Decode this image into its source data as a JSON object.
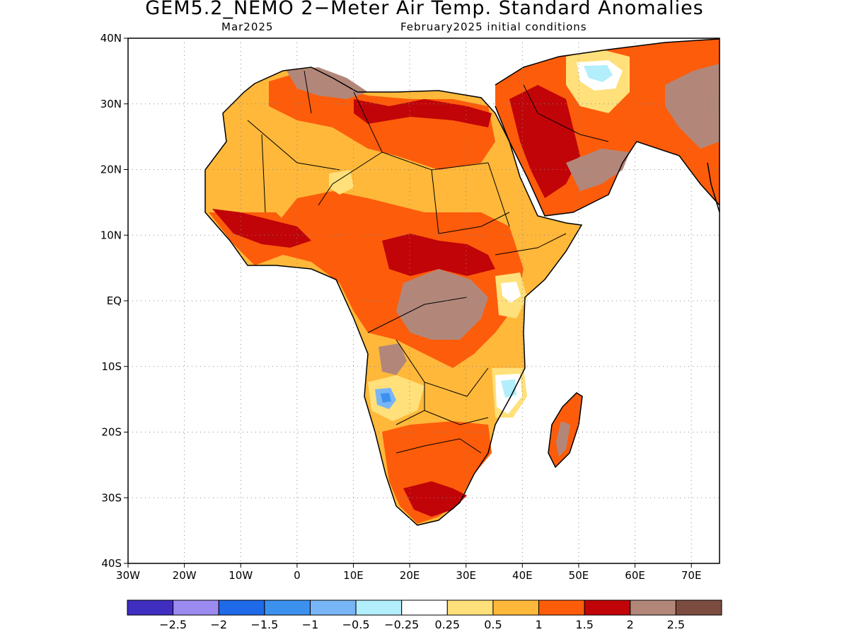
{
  "title": "GEM5.2_NEMO 2−Meter Air Temp. Standard Anomalies",
  "subtitle_left": "Mar2025",
  "subtitle_right": "February2025 initial conditions",
  "map": {
    "lon_range": [
      -30,
      75
    ],
    "lat_range": [
      -40,
      40
    ],
    "lon_ticks": [
      {
        "value": -30,
        "label": "30W"
      },
      {
        "value": -20,
        "label": "20W"
      },
      {
        "value": -10,
        "label": "10W"
      },
      {
        "value": 0,
        "label": "0"
      },
      {
        "value": 10,
        "label": "10E"
      },
      {
        "value": 20,
        "label": "20E"
      },
      {
        "value": 30,
        "label": "30E"
      },
      {
        "value": 40,
        "label": "40E"
      },
      {
        "value": 50,
        "label": "50E"
      },
      {
        "value": 60,
        "label": "60E"
      },
      {
        "value": 70,
        "label": "70E"
      }
    ],
    "lat_ticks": [
      {
        "value": 40,
        "label": "40N"
      },
      {
        "value": 30,
        "label": "30N"
      },
      {
        "value": 20,
        "label": "20N"
      },
      {
        "value": 10,
        "label": "10N"
      },
      {
        "value": 0,
        "label": "EQ"
      },
      {
        "value": -10,
        "label": "10S"
      },
      {
        "value": -20,
        "label": "20S"
      },
      {
        "value": -30,
        "label": "30S"
      },
      {
        "value": -40,
        "label": "40S"
      }
    ],
    "gridlines": true
  },
  "colorbar": {
    "colors": [
      "#3f2ec0",
      "#9b8af0",
      "#1f6ae8",
      "#3c91ee",
      "#78b5f6",
      "#b2eefb",
      "#ffffff",
      "#ffe07a",
      "#ffb83a",
      "#fd5c0b",
      "#c10408",
      "#b2877a",
      "#7d4c40"
    ],
    "labels": [
      "−2.5",
      "−2",
      "−1.5",
      "−1",
      "−0.5",
      "−0.25",
      "0.25",
      "0.5",
      "1",
      "1.5",
      "2",
      "2.5"
    ]
  }
}
